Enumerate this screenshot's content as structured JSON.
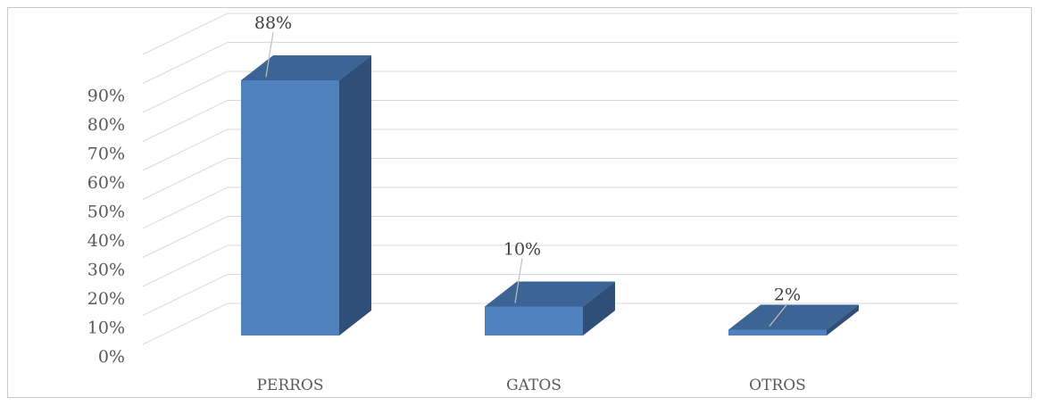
{
  "chart_data": {
    "type": "bar",
    "categories": [
      "PERROS",
      "GATOS",
      "OTROS"
    ],
    "values": [
      88,
      10,
      2
    ],
    "data_labels": [
      "88%",
      "10%",
      "2%"
    ],
    "yticks": [
      "0%",
      "10%",
      "20%",
      "30%",
      "40%",
      "50%",
      "60%",
      "70%",
      "80%",
      "90%"
    ],
    "ylim": [
      0,
      100
    ],
    "title": "",
    "xlabel": "",
    "ylabel": "",
    "grid": true,
    "colors": {
      "front": "#4f81bd",
      "side": "#2f4f78",
      "top": "#3c6494",
      "grid": "#d9d9d9"
    }
  }
}
